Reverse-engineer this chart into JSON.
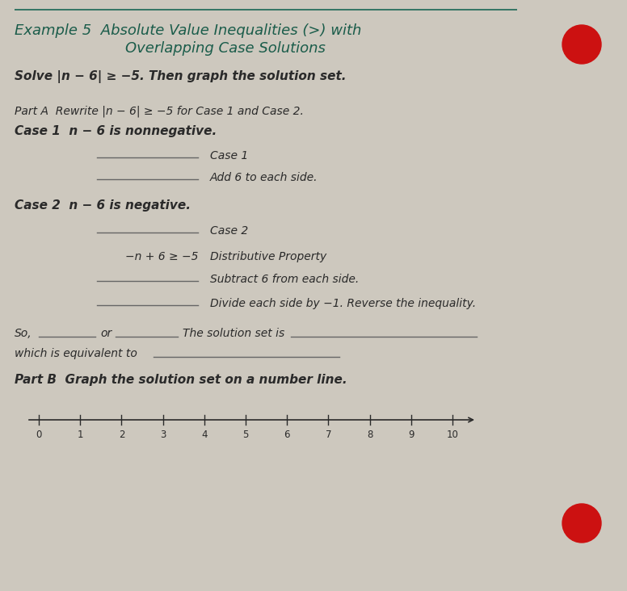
{
  "bg_color": "#cdc8be",
  "title_line1": "Example 5  Absolute Value Inequalities (>) with",
  "title_line2": "Overlapping Case Solutions",
  "title_color": "#1a5c4a",
  "title_fontsize": 13,
  "solve_text": "Solve |n − 6| ≥ −5. Then graph the solution set.",
  "part_a_text": "Part A  Rewrite |n − 6| ≥ −5 for Case 1 and Case 2.",
  "case1_header": "Case 1  n − 6 is nonnegative.",
  "case1_line1_label": "Case 1",
  "case1_line2_label": "Add 6 to each side.",
  "case2_header": "Case 2  n − 6 is negative.",
  "case2_line1_label": "Case 2",
  "case2_line2_label": "Distributive Property",
  "case2_line2_value": "−n + 6 ≥ −5",
  "case2_line3_label": "Subtract 6 from each side.",
  "case2_line4_label": "Divide each side by −1. Reverse the inequality.",
  "so_text_1": "So,",
  "so_text_2": "or",
  "so_text_3": "The solution set is",
  "equiv_text": "which is equivalent to",
  "part_b_text": "Part B  Graph the solution set on a number line.",
  "number_line_labels": [
    "0",
    "1",
    "2",
    "3",
    "4",
    "5",
    "6",
    "7",
    "8",
    "9",
    "10"
  ],
  "body_color": "#2a2a2a",
  "line_color": "#666666",
  "top_border_color": "#1a6655",
  "red_dot_color": "#cc1111",
  "body_fontsize": 10,
  "header_fontsize": 11
}
